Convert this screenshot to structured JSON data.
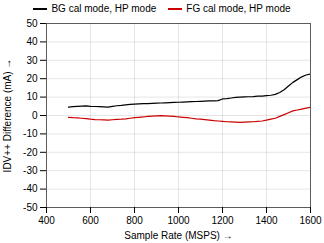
{
  "chart_data": {
    "type": "line",
    "xlabel": "Sample Rate (MSPS)",
    "ylabel": "IDV++ Difference (mA)",
    "xlim": [
      400,
      1600
    ],
    "ylim": [
      -50,
      50
    ],
    "xticks": [
      400,
      600,
      800,
      1000,
      1200,
      1400,
      1600
    ],
    "yticks": [
      -50,
      -40,
      -30,
      -20,
      -10,
      0,
      10,
      20,
      30,
      40,
      50
    ],
    "grid": true,
    "legend": "top",
    "x": [
      500,
      520,
      540,
      560,
      580,
      600,
      620,
      640,
      660,
      680,
      700,
      720,
      740,
      760,
      780,
      800,
      820,
      840,
      860,
      880,
      900,
      920,
      940,
      960,
      980,
      1000,
      1020,
      1040,
      1060,
      1080,
      1100,
      1120,
      1140,
      1160,
      1180,
      1200,
      1220,
      1240,
      1260,
      1280,
      1300,
      1320,
      1340,
      1360,
      1380,
      1400,
      1420,
      1440,
      1460,
      1480,
      1500,
      1520,
      1540,
      1560,
      1580,
      1600
    ],
    "series": [
      {
        "name": "BG cal mode, HP mode",
        "color": "#000000",
        "values": [
          4.5,
          4.8,
          5.0,
          5.1,
          5.2,
          5.0,
          4.9,
          4.8,
          4.7,
          4.6,
          5.0,
          5.3,
          5.5,
          5.8,
          6.0,
          6.2,
          6.3,
          6.4,
          6.5,
          6.6,
          6.7,
          6.8,
          6.9,
          7.0,
          7.1,
          7.2,
          7.3,
          7.4,
          7.5,
          7.6,
          7.7,
          7.8,
          7.9,
          8.0,
          8.1,
          9.0,
          9.2,
          9.5,
          9.8,
          10.0,
          10.1,
          10.2,
          10.3,
          10.5,
          10.5,
          10.8,
          11.0,
          11.5,
          12.5,
          14.0,
          16.0,
          18.0,
          19.5,
          21.0,
          22.0,
          22.5
        ]
      },
      {
        "name": "FG cal mode, HP mode",
        "color": "#cc0000",
        "values": [
          -1.0,
          -1.2,
          -1.3,
          -1.5,
          -1.7,
          -2.0,
          -2.2,
          -2.3,
          -2.4,
          -2.5,
          -2.3,
          -2.1,
          -2.0,
          -1.8,
          -1.5,
          -1.2,
          -1.0,
          -0.8,
          -0.5,
          -0.3,
          -0.2,
          -0.1,
          -0.2,
          -0.3,
          -0.5,
          -0.8,
          -1.0,
          -1.2,
          -1.5,
          -1.8,
          -2.0,
          -2.2,
          -2.5,
          -2.8,
          -3.0,
          -3.2,
          -3.4,
          -3.5,
          -3.6,
          -3.7,
          -3.6,
          -3.5,
          -3.4,
          -3.2,
          -3.0,
          -2.5,
          -2.0,
          -1.5,
          -0.5,
          0.5,
          1.5,
          2.5,
          3.0,
          3.5,
          4.0,
          4.5
        ]
      }
    ]
  }
}
